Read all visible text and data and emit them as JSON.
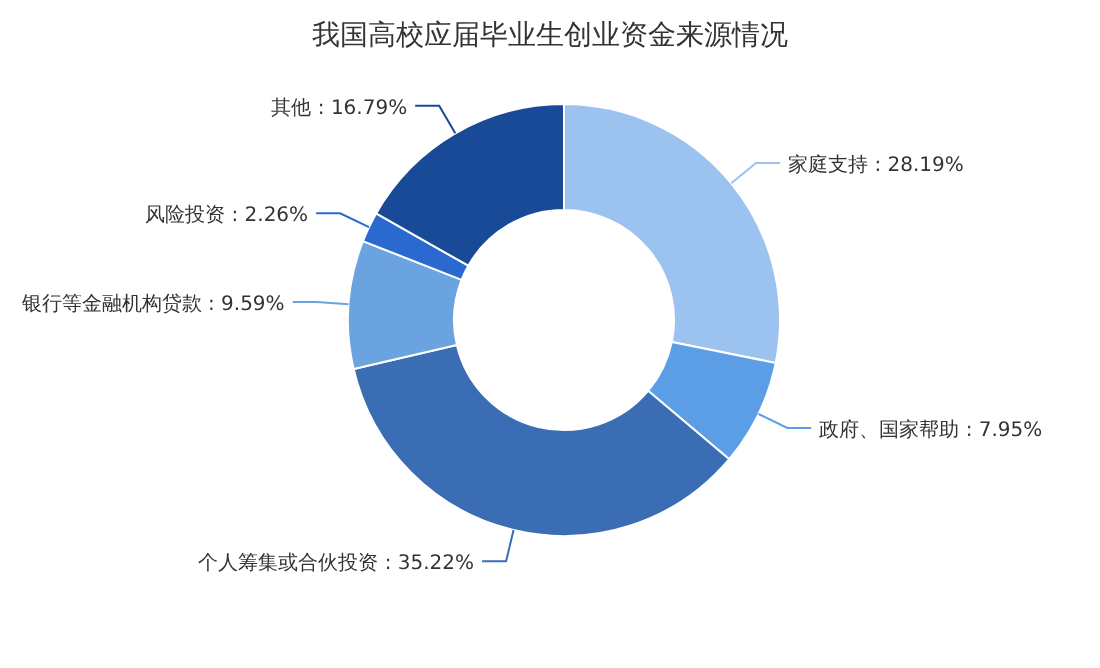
{
  "chart_data": {
    "type": "donut",
    "title": "我国高校应届毕业生创业资金来源情况",
    "categories": [
      "家庭支持",
      "政府、国家帮助",
      "个人筹集或合伙投资",
      "银行等金融机构贷款",
      "风险投资",
      "其他"
    ],
    "values": [
      28.19,
      7.95,
      35.22,
      9.59,
      2.26,
      16.79
    ],
    "colors": [
      "#9cc3f0",
      "#5b9ee6",
      "#3a6db3",
      "#6aa3e0",
      "#2a6ad0",
      "#194a98"
    ],
    "value_labels": [
      ": 28.19%",
      ": 7.95%",
      ": 35.22%",
      ": 9.59%",
      ": 2.26%",
      ": 16.79%"
    ]
  }
}
